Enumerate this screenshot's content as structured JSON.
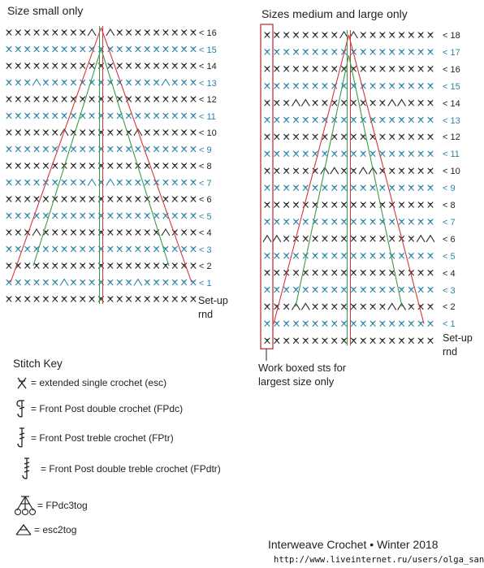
{
  "chart_small": {
    "title": "Size small only",
    "row_labels": [
      "< 16",
      "< 15",
      "< 14",
      "< 13",
      "< 12",
      "< 11",
      "< 10",
      "< 9",
      "< 8",
      "< 7",
      "< 6",
      "< 5",
      "< 4",
      "< 3",
      "< 2",
      "< 1"
    ],
    "setup_label": [
      "Set-up",
      "rnd"
    ]
  },
  "chart_medium_large": {
    "title": "Sizes medium and large only",
    "row_labels": [
      "< 18",
      "< 17",
      "< 16",
      "< 15",
      "< 14",
      "< 13",
      "< 12",
      "< 11",
      "< 10",
      "< 9",
      "< 8",
      "< 7",
      "< 6",
      "< 5",
      "< 4",
      "< 3",
      "< 2",
      "< 1"
    ],
    "setup_label": [
      "Set-up",
      "rnd"
    ],
    "boxed_note": [
      "Work boxed sts for",
      "largest size only"
    ]
  },
  "stitch_key": {
    "title": "Stitch Key",
    "items": [
      {
        "icon": "esc-symbol-icon",
        "text": "= extended single crochet (esc)"
      },
      {
        "icon": "fpdc-symbol-icon",
        "text": "= Front Post double crochet (FPdc)"
      },
      {
        "icon": "fptr-symbol-icon",
        "text": "= Front Post treble crochet (FPtr)"
      },
      {
        "icon": "fpdtr-symbol-icon",
        "text": "= Front Post double treble crochet (FPdtr)"
      },
      {
        "icon": "fpdc3tog-symbol-icon",
        "text": "= FPdc3tog"
      },
      {
        "icon": "esc2tog-symbol-icon",
        "text": "= esc2tog"
      }
    ]
  },
  "footer": {
    "publication": "Interweave Crochet  •  Winter 2018",
    "url": "http://www.liveinternet.ru/users/olga_san/"
  },
  "colors": {
    "dark_rows": "#2a2a2a",
    "blue_rows": "#2a83a6",
    "red_posts": "#d6363a",
    "green_posts": "#3c9b4a",
    "box": "#b3262b"
  }
}
